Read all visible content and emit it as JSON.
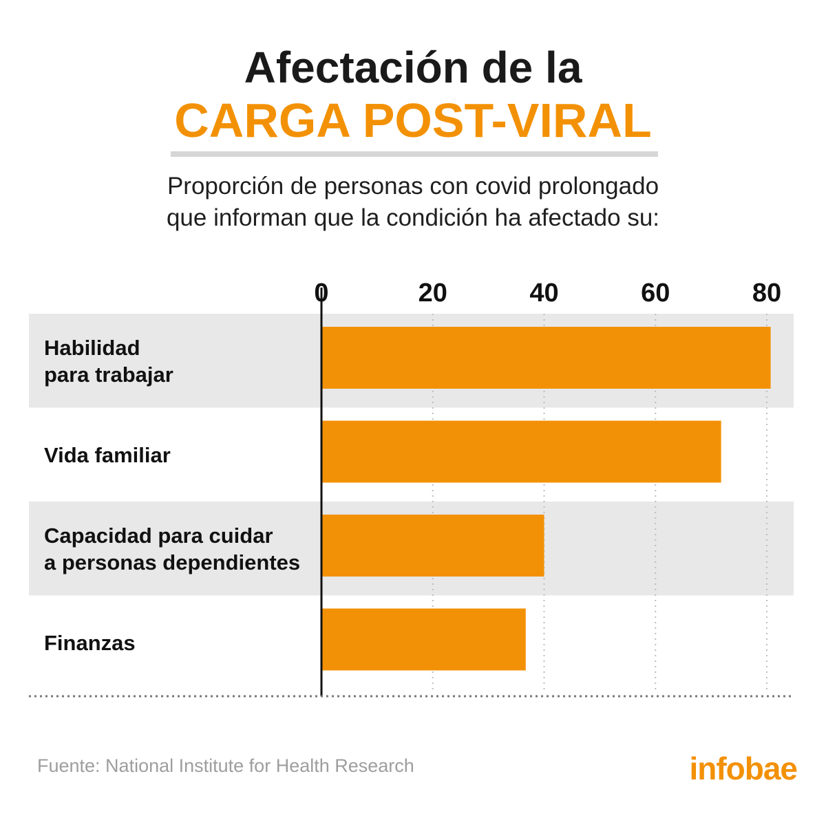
{
  "title": {
    "line1": "Afectación de la",
    "line2": "CARGA POST-VIRAL"
  },
  "subtitle": {
    "line1": "Proporción de personas con covid prolongado",
    "line2": "que informan que la condición ha afectado su:"
  },
  "source": "Fuente: National Institute for Health Research",
  "logo": "infobae",
  "colors": {
    "accent": "#f39106",
    "bar": "#f39106",
    "band": "#e8e8e8",
    "text": "#111111"
  },
  "chart_data": {
    "type": "bar",
    "orientation": "horizontal",
    "title": "Afectación de la CARGA POST-VIRAL",
    "subtitle": "Proporción de personas con covid prolongado que informan que la condición ha afectado su:",
    "categories": [
      [
        "Habilidad",
        "para trabajar"
      ],
      [
        "Vida familiar"
      ],
      [
        "Capacidad para cuidar",
        "a personas dependientes"
      ],
      [
        "Finanzas"
      ]
    ],
    "values": [
      80.7,
      71.8,
      40,
      36.7
    ],
    "xlim": [
      0,
      80.5
    ],
    "ticks": [
      0,
      20,
      40,
      60,
      80
    ],
    "tick_labels": [
      "0",
      "20",
      "40",
      "60",
      "80"
    ],
    "xlabel": "",
    "ylabel": "",
    "grid": "vertical dotted"
  }
}
